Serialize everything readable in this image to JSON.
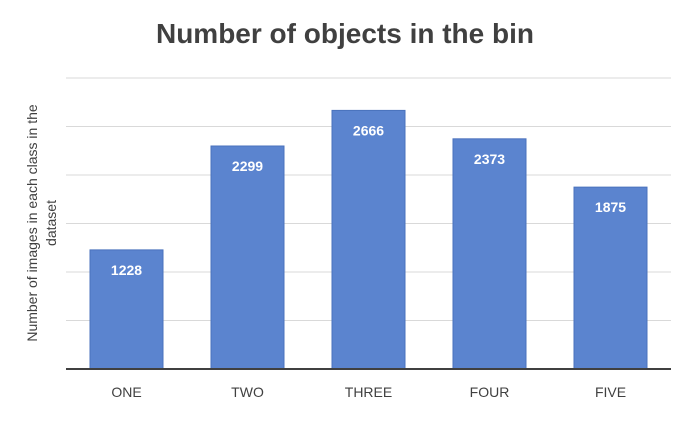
{
  "chart_data": {
    "type": "bar",
    "title": "Number of objects in the bin",
    "xlabel": "",
    "ylabel": "Number of images in each class in the dataset",
    "categories": [
      "ONE",
      "TWO",
      "THREE",
      "FOUR",
      "FIVE"
    ],
    "values": [
      1228,
      2299,
      2666,
      2373,
      1875
    ],
    "ylim": [
      0,
      3000
    ],
    "grid": true,
    "data_labels": true,
    "legend": "none",
    "colors": {
      "bar": "#5B84CF",
      "bar_stroke": "#4A72BC",
      "grid": "#D9D9D9",
      "axis": "#404040",
      "title": "#404040",
      "tick_label": "#404040",
      "data_label": "#FFFFFF"
    }
  }
}
